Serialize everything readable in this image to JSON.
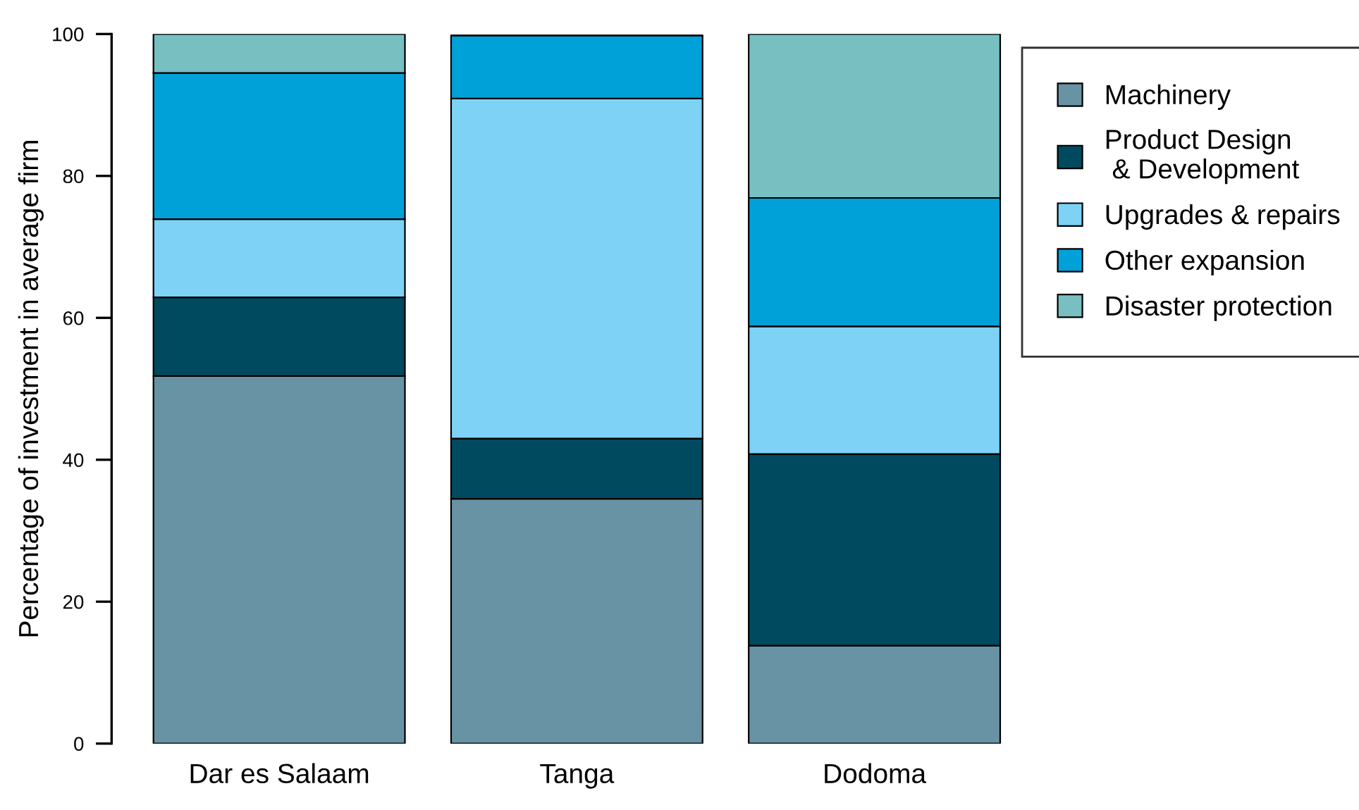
{
  "chart_data": {
    "type": "bar",
    "stacked": true,
    "ylabel": "Percentage of investment in average firm",
    "categories": [
      "Dar es Salaam",
      "Tanga",
      "Dodoma"
    ],
    "series": [
      {
        "name": "Machinery",
        "color": "#6893a5",
        "values": [
          51.8,
          34.5,
          13.8
        ]
      },
      {
        "name": "Product Design\n & Development",
        "color": "#004a60",
        "values": [
          11.1,
          8.5,
          27.0
        ]
      },
      {
        "name": "Upgrades & repairs",
        "color": "#7dd2f5",
        "values": [
          11.0,
          47.9,
          18.0
        ]
      },
      {
        "name": "Other expansion",
        "color": "#00a1d9",
        "values": [
          20.6,
          8.9,
          18.1
        ]
      },
      {
        "name": "Disaster protection",
        "color": "#78bfc2",
        "values": [
          5.5,
          null,
          23.1
        ]
      }
    ],
    "ylim": [
      0,
      100
    ],
    "yticks": [
      0,
      20,
      40,
      60,
      80,
      100
    ],
    "grid": false,
    "legend": "right"
  }
}
